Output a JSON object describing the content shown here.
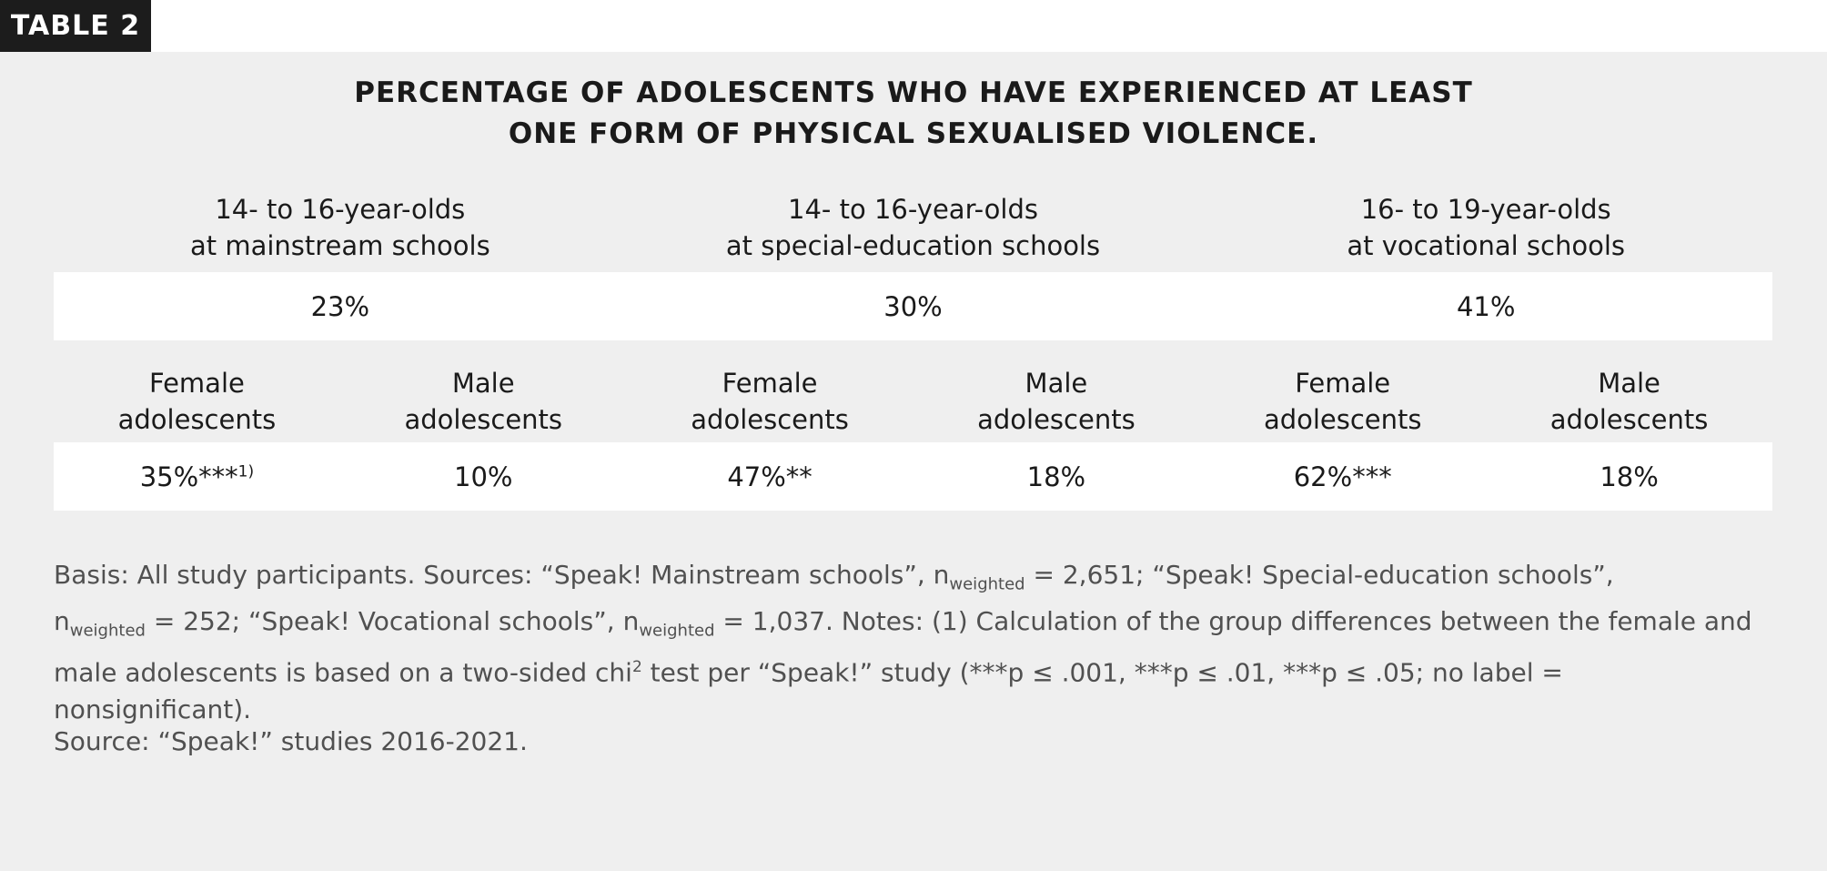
{
  "tab_label": "TABLE 2",
  "title": {
    "line1": "PERCENTAGE OF ADOLESCENTS WHO HAVE EXPERIENCED AT LEAST",
    "line2": "ONE FORM OF PHYSICAL SEXUALISED VIOLENCE."
  },
  "groups": [
    {
      "line1": "14- to 16-year-olds",
      "line2": "at mainstream schools",
      "total": "23%"
    },
    {
      "line1": "14- to 16-year-olds",
      "line2": "at special-education schools",
      "total": "30%"
    },
    {
      "line1": "16- to 19-year-olds",
      "line2": "at vocational schools",
      "total": "41%"
    }
  ],
  "subheaders": [
    {
      "line1": "Female",
      "line2": "adolescents",
      "value": "35%***",
      "note": "1)"
    },
    {
      "line1": "Male",
      "line2": "adolescents",
      "value": "10%",
      "note": ""
    },
    {
      "line1": "Female",
      "line2": "adolescents",
      "value": "47%**",
      "note": ""
    },
    {
      "line1": "Male",
      "line2": "adolescents",
      "value": "18%",
      "note": ""
    },
    {
      "line1": "Female",
      "line2": "adolescents",
      "value": "62%***",
      "note": ""
    },
    {
      "line1": "Male",
      "line2": "adolescents",
      "value": "18%",
      "note": ""
    }
  ],
  "footnote": {
    "p1": "Basis: All study participants. Sources: “Speak! Mainstream schools”, n",
    "sub1": "weighted",
    "p2": " = 2,651; “Speak! Special-education schools”, n",
    "sub2": "weighted",
    "p3": " = 252; “Speak! Vocational schools”, n",
    "sub3": "weighted",
    "p4": " = 1,037. Notes: (1) Calculation of the group differences between the female and male adolescents is based on a two-sided chi",
    "sup": "2",
    "p5": " test per “Speak!” study (***p ≤ .001, ***p ≤ .01, ***p ≤ .05; no label = nonsignificant)."
  },
  "source": "Source: “Speak!” studies 2016-2021."
}
